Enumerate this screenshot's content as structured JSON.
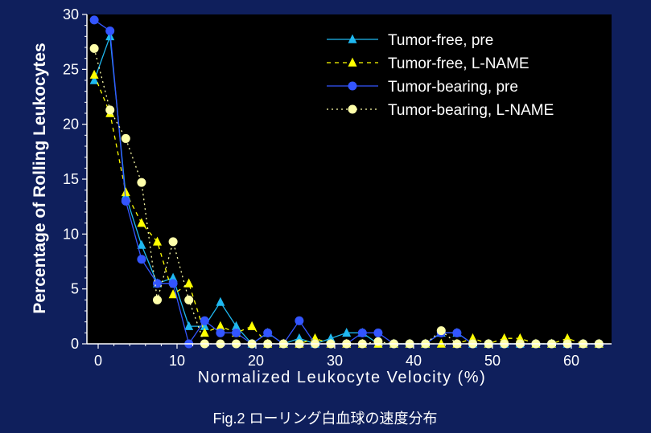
{
  "chart_data": {
    "type": "line",
    "xlabel": "Normalized Leukocyte Velocity (%)",
    "ylabel": "Percentage of Rolling Leukocytes",
    "caption": "Fig.2  ローリング白血球の速度分布",
    "xlim": [
      -1,
      65
    ],
    "ylim": [
      0,
      30
    ],
    "xticks": [
      0,
      10,
      20,
      30,
      40,
      50,
      60
    ],
    "yticks": [
      0,
      5,
      10,
      15,
      20,
      25,
      30
    ],
    "xtick_labels": [
      "0",
      "10",
      "20",
      "30",
      "40",
      "50",
      "60"
    ],
    "ytick_labels": [
      "0",
      "5",
      "10",
      "15",
      "20",
      "25",
      "30"
    ],
    "legend_position": "top-right",
    "grid": false,
    "colors": {
      "background": "#0f1f5c",
      "plot_area": "#000000",
      "axis": "#ffffff",
      "tumor_free_pre": "#1fb8f0",
      "tumor_free_lname": "#ffff00",
      "tumor_bearing_pre": "#3355ff",
      "tumor_bearing_lname": "#ffffaa"
    },
    "series": [
      {
        "name": "Tumor-free, pre",
        "marker": "triangle",
        "line": "solid",
        "color": "#1fb8f0",
        "x": [
          -0.5,
          1.5,
          3.5,
          5.5,
          7.5,
          9.5,
          11.5,
          13.5,
          15.5,
          17.5,
          19.5,
          21.5,
          23.5,
          25.5,
          27.5,
          29.5,
          31.5,
          33.5,
          35.5,
          37.5,
          39.5,
          41.5,
          43.5,
          45.5,
          47.5,
          49.5,
          51.5,
          53.5,
          55.5,
          57.5,
          59.5,
          61.5,
          63.5
        ],
        "values": [
          24.0,
          28.0,
          13.5,
          9.0,
          5.5,
          6.0,
          1.6,
          1.6,
          3.8,
          1.6,
          0.0,
          1.0,
          0.0,
          0.5,
          0.0,
          0.5,
          1.0,
          1.0,
          0.0,
          0.0,
          0.0,
          0.0,
          1.0,
          1.0,
          0.0,
          0.0,
          0.0,
          0.0,
          0.0,
          0.0,
          0.0,
          0.0,
          0.0
        ]
      },
      {
        "name": "Tumor-free, L-NAME",
        "marker": "triangle",
        "line": "dashed",
        "color": "#ffff00",
        "x": [
          -0.5,
          1.5,
          3.5,
          5.5,
          7.5,
          9.5,
          11.5,
          13.5,
          15.5,
          17.5,
          19.5,
          21.5,
          23.5,
          25.5,
          27.5,
          29.5,
          31.5,
          33.5,
          35.5,
          37.5,
          39.5,
          41.5,
          43.5,
          45.5,
          47.5,
          49.5,
          51.5,
          53.5,
          55.5,
          57.5,
          59.5,
          61.5,
          63.5
        ],
        "values": [
          24.5,
          21.0,
          13.8,
          11.0,
          9.3,
          4.5,
          5.5,
          1.0,
          1.6,
          1.0,
          1.6,
          0.0,
          0.0,
          0.0,
          0.5,
          0.0,
          0.0,
          0.0,
          0.0,
          0.0,
          0.0,
          0.0,
          0.0,
          0.0,
          0.5,
          0.0,
          0.5,
          0.5,
          0.0,
          0.0,
          0.5,
          0.0,
          0.0
        ]
      },
      {
        "name": "Tumor-bearing, pre",
        "marker": "circle",
        "line": "solid",
        "color": "#3355ff",
        "x": [
          -0.5,
          1.5,
          3.5,
          5.5,
          7.5,
          9.5,
          11.5,
          13.5,
          15.5,
          17.5,
          19.5,
          21.5,
          23.5,
          25.5,
          27.5,
          29.5,
          31.5,
          33.5,
          35.5,
          37.5,
          39.5,
          41.5,
          43.5,
          45.5,
          47.5,
          49.5,
          51.5,
          53.5,
          55.5,
          57.5,
          59.5,
          61.5,
          63.5
        ],
        "values": [
          29.5,
          28.5,
          13.0,
          7.7,
          5.5,
          5.5,
          0.0,
          2.1,
          1.0,
          1.0,
          0.0,
          1.0,
          0.0,
          2.1,
          0.0,
          0.0,
          0.0,
          1.0,
          1.0,
          0.0,
          0.0,
          0.0,
          1.0,
          1.0,
          0.0,
          0.0,
          0.0,
          0.0,
          0.0,
          0.0,
          0.0,
          0.0,
          0.0
        ]
      },
      {
        "name": "Tumor-bearing, L-NAME",
        "marker": "circle",
        "line": "dotted",
        "color": "#ffffaa",
        "x": [
          -0.5,
          1.5,
          3.5,
          5.5,
          7.5,
          9.5,
          11.5,
          13.5,
          15.5,
          17.5,
          19.5,
          21.5,
          23.5,
          25.5,
          27.5,
          29.5,
          31.5,
          33.5,
          35.5,
          37.5,
          39.5,
          41.5,
          43.5,
          45.5,
          47.5,
          49.5,
          51.5,
          53.5,
          55.5,
          57.5,
          59.5,
          61.5,
          63.5
        ],
        "values": [
          26.9,
          21.3,
          18.7,
          14.7,
          4.0,
          9.3,
          4.0,
          0.0,
          0.0,
          0.0,
          0.0,
          0.0,
          0.0,
          0.0,
          0.0,
          0.0,
          0.0,
          0.0,
          0.2,
          0.0,
          0.0,
          0.0,
          1.2,
          0.0,
          0.0,
          0.0,
          0.0,
          0.0,
          0.0,
          0.0,
          0.0,
          0.0,
          0.0
        ]
      }
    ]
  }
}
